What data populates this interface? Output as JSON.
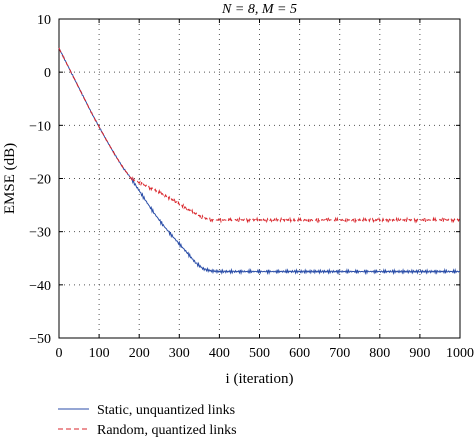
{
  "chart_data": {
    "type": "line",
    "title": "N = 8, M = 5",
    "xlabel": "i (iteration)",
    "ylabel": "EMSE (dB)",
    "xlim": [
      0,
      1000
    ],
    "ylim": [
      -50,
      10
    ],
    "xticks": [
      0,
      100,
      200,
      300,
      400,
      500,
      600,
      700,
      800,
      900,
      1000
    ],
    "xtick_labels": [
      "0",
      "100",
      "200",
      "300",
      "400",
      "500",
      "600",
      "700",
      "800",
      "900",
      "1000"
    ],
    "yticks": [
      10,
      0,
      -10,
      -20,
      -30,
      -40,
      -50
    ],
    "ytick_labels": [
      "10",
      "0",
      "−10",
      "−20",
      "−30",
      "−40",
      "−50"
    ],
    "grid": true,
    "legend_position": "below",
    "series": [
      {
        "name": "Static, unquantized links",
        "color": "#2b4ea8",
        "dash": "solid",
        "x": [
          0,
          20,
          40,
          60,
          80,
          100,
          120,
          140,
          160,
          180,
          200,
          220,
          240,
          260,
          280,
          300,
          320,
          340,
          360,
          380,
          400,
          450,
          500,
          600,
          700,
          800,
          900,
          1000
        ],
        "y": [
          4.5,
          1.5,
          -1.5,
          -4.5,
          -7.5,
          -10.3,
          -13.0,
          -15.6,
          -18.0,
          -20.0,
          -22.3,
          -24.6,
          -26.8,
          -28.8,
          -30.6,
          -32.3,
          -34.0,
          -35.8,
          -37.0,
          -37.4,
          -37.5,
          -37.5,
          -37.5,
          -37.5,
          -37.5,
          -37.5,
          -37.5,
          -37.5
        ]
      },
      {
        "name": "Random, quantized links",
        "color": "#d9252b",
        "dash": "dashed",
        "x": [
          0,
          20,
          40,
          60,
          80,
          100,
          120,
          140,
          160,
          180,
          200,
          220,
          240,
          260,
          280,
          300,
          320,
          340,
          360,
          380,
          400,
          450,
          500,
          600,
          700,
          800,
          900,
          1000
        ],
        "y": [
          4.5,
          1.5,
          -1.5,
          -4.5,
          -7.5,
          -10.3,
          -13.0,
          -15.6,
          -18.0,
          -20.0,
          -20.8,
          -21.5,
          -22.2,
          -23.0,
          -23.9,
          -24.8,
          -25.7,
          -26.6,
          -27.4,
          -27.8,
          -27.8,
          -27.8,
          -27.8,
          -27.8,
          -27.8,
          -27.8,
          -27.8,
          -27.8
        ]
      }
    ]
  }
}
